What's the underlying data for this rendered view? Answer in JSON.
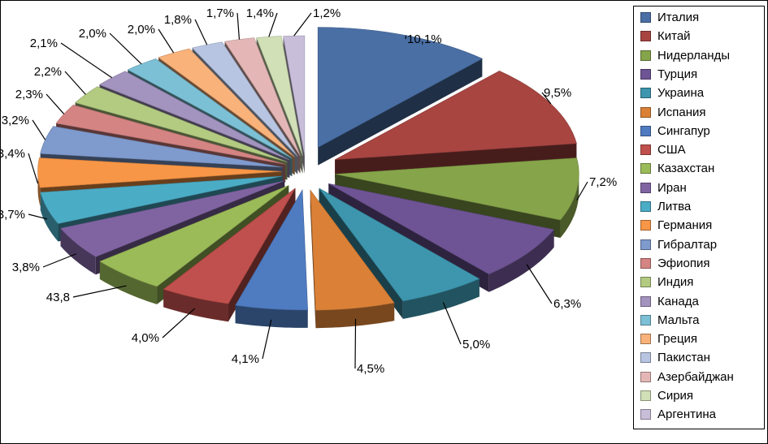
{
  "chart_data": {
    "type": "pie",
    "style": "3d-exploded",
    "title": "",
    "legend_position": "right",
    "slices": [
      {
        "name": "Италия",
        "value": 10.1,
        "label": "10,1%",
        "color": "#4A6FA5"
      },
      {
        "name": "Китай",
        "value": 9.5,
        "label": "9,5%",
        "color": "#A84541"
      },
      {
        "name": "Нидерланды",
        "value": 7.2,
        "label": "7,2%",
        "color": "#86A44A"
      },
      {
        "name": "Турция",
        "value": 6.3,
        "label": "6,3%",
        "color": "#6E5494"
      },
      {
        "name": "Украина",
        "value": 5.0,
        "label": "5,0%",
        "color": "#3D96AE"
      },
      {
        "name": "Испания",
        "value": 4.5,
        "label": "4,5%",
        "color": "#DA8137"
      },
      {
        "name": "Сингапур",
        "value": 4.1,
        "label": "4,1%",
        "color": "#4F7BC1"
      },
      {
        "name": "США",
        "value": 4.0,
        "label": "4,0%",
        "color": "#C0504D"
      },
      {
        "name": "Казахстан",
        "value": 43.8,
        "label": "43,8",
        "color": "#9BBB59"
      },
      {
        "name": "Иран",
        "value": 3.8,
        "label": "3,8%",
        "color": "#8064A2"
      },
      {
        "name": "Литва",
        "value": 3.7,
        "label": "3,7%",
        "color": "#4BACC6"
      },
      {
        "name": "Германия",
        "value": 3.4,
        "label": "3,4%",
        "color": "#F79646"
      },
      {
        "name": "Гибралтар",
        "value": 3.2,
        "label": "3,2%",
        "color": "#7F9ACD"
      },
      {
        "name": "Эфиопия",
        "value": 2.3,
        "label": "2,3%",
        "color": "#D48483"
      },
      {
        "name": "Индия",
        "value": 2.2,
        "label": "2,2%",
        "color": "#B3CB81"
      },
      {
        "name": "Канада",
        "value": 2.1,
        "label": "2,1%",
        "color": "#A293BF"
      },
      {
        "name": "Мальта",
        "value": 2.0,
        "label": "2,0%",
        "color": "#7CC0D6"
      },
      {
        "name": "Греция",
        "value": 2.0,
        "label": "2,0%",
        "color": "#F9B27A"
      },
      {
        "name": "Пакистан",
        "value": 1.8,
        "label": "1,8%",
        "color": "#B7C5E2"
      },
      {
        "name": "Азербайджан",
        "value": 1.7,
        "label": "1,7%",
        "color": "#E4B7B6"
      },
      {
        "name": "Сирия",
        "value": 1.4,
        "label": "1,4%",
        "color": "#D1E0B6"
      },
      {
        "name": "Аргентина",
        "value": 1.2,
        "label": "1,2%",
        "color": "#C8BED9"
      }
    ]
  }
}
